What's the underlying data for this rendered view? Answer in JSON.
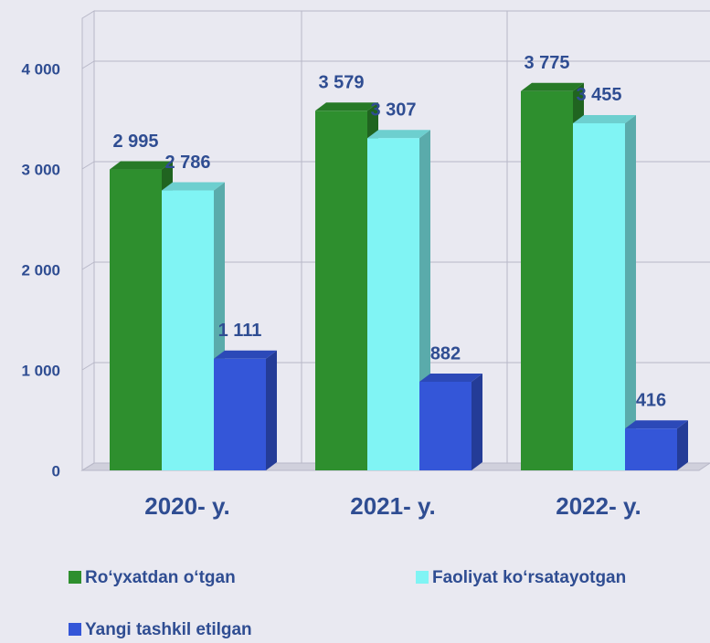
{
  "chart_data": {
    "type": "bar3d",
    "categories": [
      "2020- y.",
      "2021- y.",
      "2022- y."
    ],
    "series": [
      {
        "name": "Ro‘yxatdan o‘tgan",
        "color": "#2e8f2e",
        "values": [
          2995,
          3579,
          3775
        ],
        "value_labels": [
          "2 995",
          "3 579",
          "3 775"
        ]
      },
      {
        "name": "Faoliyat ko‘rsatayotgan",
        "color": "#80f4f4",
        "values": [
          2786,
          3307,
          3455
        ],
        "value_labels": [
          "2 786",
          "3 307",
          "3 455"
        ]
      },
      {
        "name": "Yangi tashkil etilgan",
        "color": "#3456d8",
        "values": [
          1111,
          882,
          416
        ],
        "value_labels": [
          "1 111",
          "882",
          "416"
        ]
      }
    ],
    "ylim": [
      0,
      4500
    ],
    "yticks": [
      0,
      {
        "value": 1000,
        "label": "1 000"
      },
      {
        "value": 2000,
        "label": "2 000"
      },
      {
        "value": 3000,
        "label": "3 000"
      },
      {
        "value": 4000,
        "label": "4 000"
      }
    ],
    "grid": true
  }
}
